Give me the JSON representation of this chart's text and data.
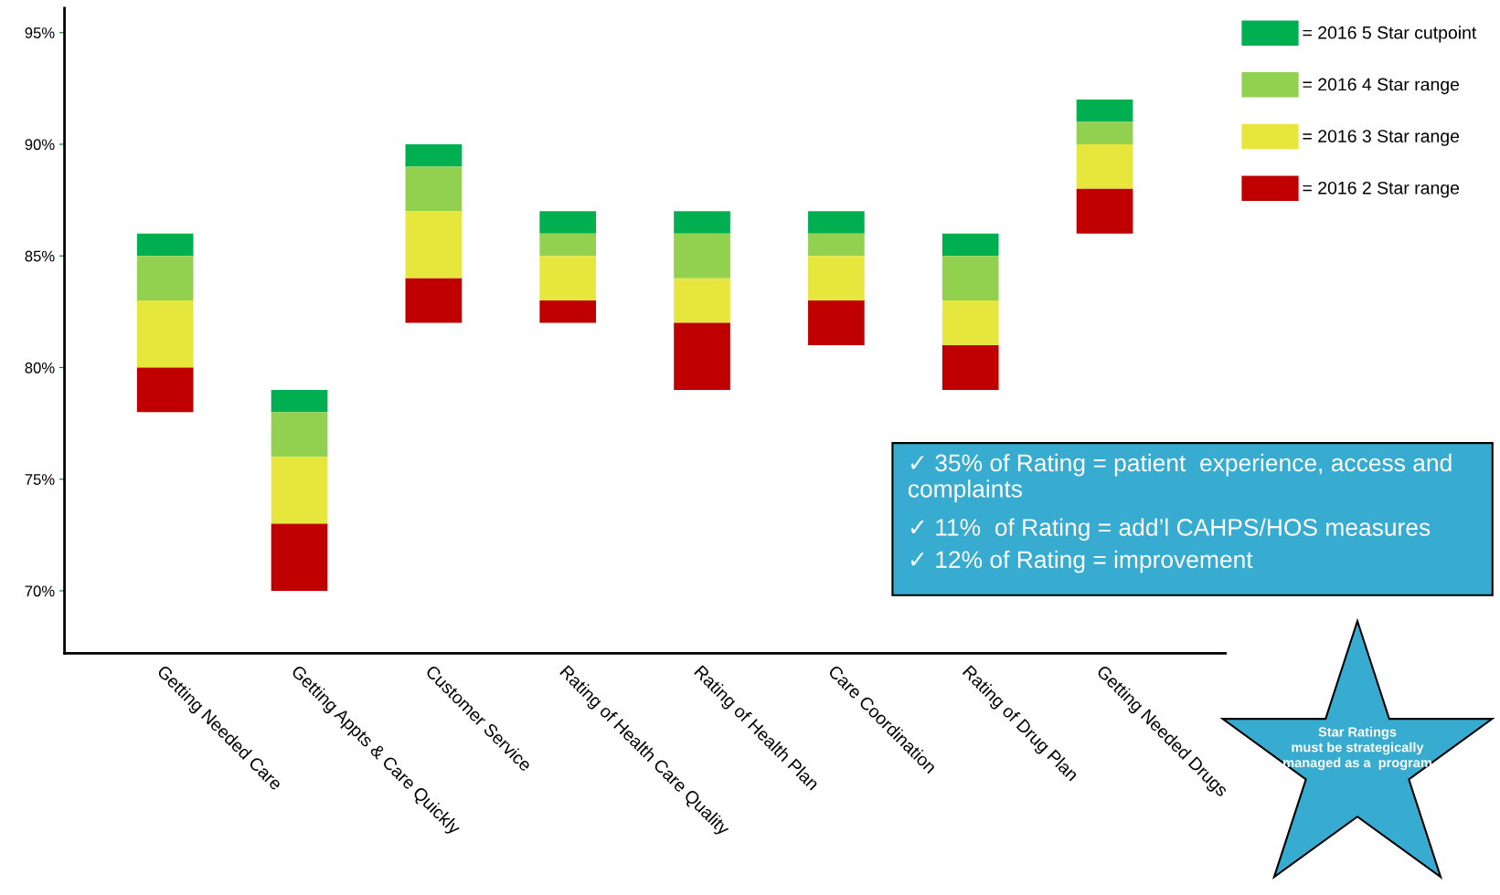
{
  "chart_data": {
    "type": "bar",
    "stacked": false,
    "categories": [
      "Getting Needed Care",
      "Getting Appts & Care Quickly",
      "Customer Service",
      "Rating of Health Care Quality",
      "Rating of Health Plan",
      "Care Coordination",
      "Rating of Drug Plan",
      "Getting Needed Drugs"
    ],
    "series": [
      {
        "name": "= 2016 5 Star cutpoint",
        "color": "#00b050",
        "base": [
          85,
          78,
          89,
          86,
          86,
          86,
          85,
          91
        ],
        "values": [
          1,
          1,
          1,
          1,
          1,
          1,
          1,
          1
        ]
      },
      {
        "name": "= 2016 4 Star range",
        "color": "#92d050",
        "base": [
          83,
          76,
          87,
          85,
          84,
          85,
          83,
          90
        ],
        "values": [
          2,
          2,
          2,
          1,
          2,
          1,
          2,
          1
        ]
      },
      {
        "name": "= 2016 3 Star range",
        "color": "#e6e63c",
        "base": [
          80,
          73,
          84,
          83,
          82,
          83,
          81,
          88
        ],
        "values": [
          3,
          3,
          3,
          2,
          2,
          2,
          2,
          2
        ]
      },
      {
        "name": "= 2016 2 Star range",
        "color": "#c00000",
        "base": [
          78,
          70,
          82,
          82,
          79,
          81,
          79,
          86
        ],
        "values": [
          2,
          3,
          2,
          1,
          3,
          2,
          2,
          2
        ]
      }
    ],
    "ylim": [
      67.2,
      96.1
    ],
    "yticks": [
      {
        "value": 70,
        "label": "70%"
      },
      {
        "value": 75,
        "label": "75%"
      },
      {
        "value": 80,
        "label": "80%"
      },
      {
        "value": 85,
        "label": "85%"
      },
      {
        "value": 90,
        "label": "90%"
      },
      {
        "value": 95,
        "label": "95%"
      }
    ],
    "legend": "top right",
    "annotations": [
      "✓ 35% of Rating = patient  experience, access and complaints",
      "✓ 11%  of Rating = add’l CAHPS/HOS measures",
      "✓ 12% of Rating = improvement",
      "Star Ratings\nmust be strategically\nmanaged as a  program"
    ]
  }
}
